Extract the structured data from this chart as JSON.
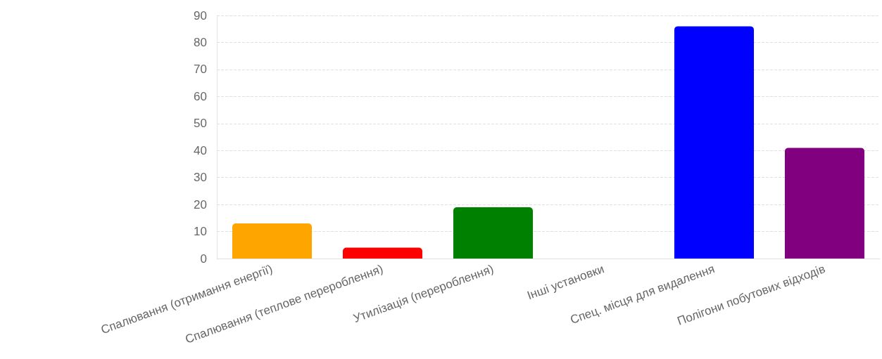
{
  "chart_data": {
    "type": "bar",
    "categories": [
      "Спалювання (отримання енергії)",
      "Спалювання (теплове перероблення)",
      "Утилізація (перероблення)",
      "Інші установки",
      "Спец. місця для видалення",
      "Полігони побутових відходів"
    ],
    "values": [
      13,
      4,
      19,
      0,
      86,
      41
    ],
    "colors": [
      "#ffa500",
      "#ff0000",
      "#008000",
      "#808080",
      "#0000ff",
      "#800080"
    ],
    "ylim": [
      0,
      90
    ],
    "yticks": [
      0,
      10,
      20,
      30,
      40,
      50,
      60,
      70,
      80,
      90
    ],
    "grid": "y"
  }
}
